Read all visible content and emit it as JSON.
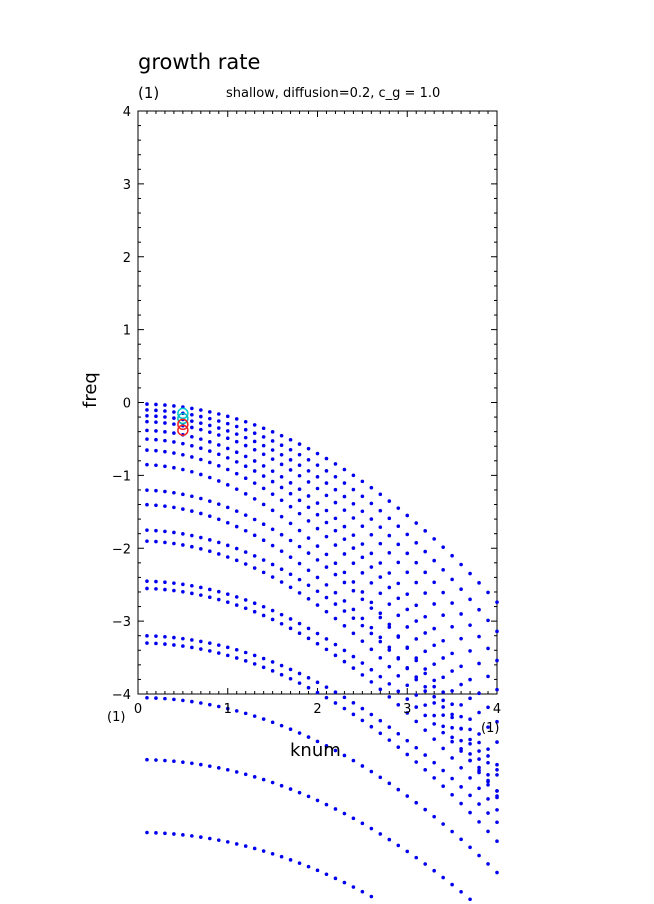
{
  "chart_data": {
    "type": "scatter",
    "title": "growth rate",
    "panel_label": "(1)",
    "subtitle": "shallow, diffusion=0.2, c_g = 1.0",
    "xlabel": "knum",
    "ylabel": "freq",
    "corner_labels": {
      "lower_left": "(1)",
      "lower_right": "(1)"
    },
    "xlim": [
      0,
      4
    ],
    "ylim": [
      -4,
      4
    ],
    "xticks": [
      "0",
      "1",
      "2",
      "3",
      "4"
    ],
    "yticks": [
      "4",
      "3",
      "2",
      "1",
      "0",
      "−1",
      "−2",
      "−3",
      "−4"
    ],
    "k_values": [
      0.1,
      0.2,
      0.3,
      0.4,
      0.5,
      0.6,
      0.7,
      0.8,
      0.9,
      1.0,
      1.1,
      1.2,
      1.3,
      1.4,
      1.5,
      1.6,
      1.7,
      1.8,
      1.9,
      2.0,
      2.1,
      2.2,
      2.3,
      2.4,
      2.5,
      2.6,
      2.7,
      2.8,
      2.9,
      3.0,
      3.1,
      3.2,
      3.3,
      3.4,
      3.5,
      3.6,
      3.7,
      3.8,
      3.9,
      4.0
    ],
    "dispersion_curves": {
      "description_free_params_for_branches": true,
      "intercepts": [
        -0.02,
        -0.1,
        -0.18,
        -0.26,
        -0.38,
        -0.5,
        -0.65,
        -0.85,
        -1.2,
        -1.4,
        -1.75,
        -1.9,
        -2.45,
        -2.55,
        -3.2,
        -3.3,
        -4.05,
        -4.9,
        -5.9
      ],
      "curvature": [
        0.17,
        0.19,
        0.21,
        0.23,
        0.25,
        0.26,
        0.27,
        0.28,
        0.24,
        0.25,
        0.21,
        0.22,
        0.18,
        0.19,
        0.16,
        0.17,
        0.15,
        0.14,
        0.13
      ],
      "point_color": "#0000ee"
    },
    "highlight_markers": [
      {
        "x": 0.5,
        "y": -0.15,
        "color": "#00cccc"
      },
      {
        "x": 0.5,
        "y": -0.22,
        "color": "#00bbbb"
      },
      {
        "x": 0.5,
        "y": -0.3,
        "color": "#ee2222"
      },
      {
        "x": 0.5,
        "y": -0.38,
        "color": "#ee2222"
      }
    ]
  }
}
